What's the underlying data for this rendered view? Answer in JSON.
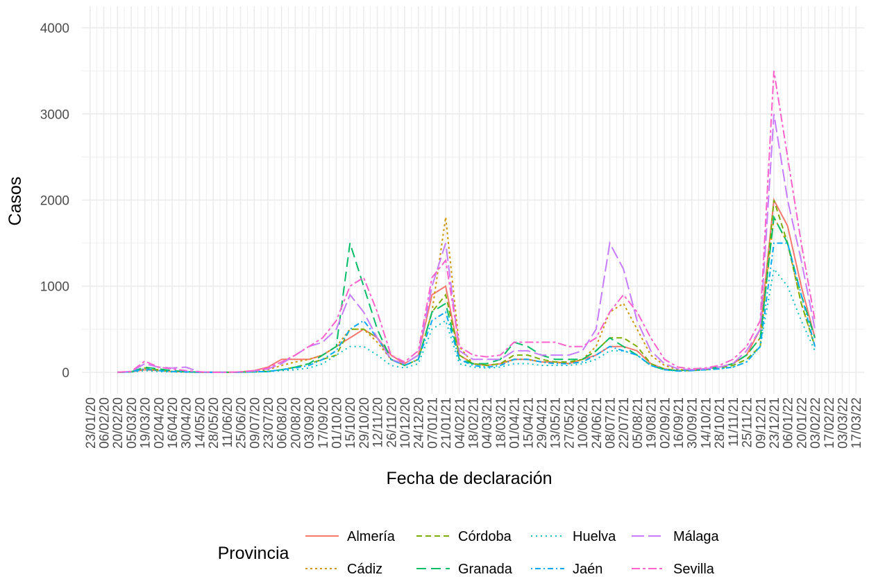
{
  "chart_data": {
    "type": "line",
    "x_label": "Fecha de declaración",
    "y_label": "Casos",
    "legend_title": "Provincia",
    "legend_position": "bottom",
    "grid": true,
    "categories": [
      "23/01/20",
      "06/02/20",
      "20/02/20",
      "05/03/20",
      "19/03/20",
      "02/04/20",
      "16/04/20",
      "30/04/20",
      "14/05/20",
      "28/05/20",
      "11/06/20",
      "25/06/20",
      "09/07/20",
      "23/07/20",
      "06/08/20",
      "20/08/20",
      "03/09/20",
      "17/09/20",
      "01/10/20",
      "15/10/20",
      "29/10/20",
      "12/11/20",
      "26/11/20",
      "10/12/20",
      "24/12/20",
      "07/01/21",
      "21/01/21",
      "04/02/21",
      "18/02/21",
      "04/03/21",
      "18/03/21",
      "01/04/21",
      "15/04/21",
      "29/04/21",
      "13/05/21",
      "27/05/21",
      "10/06/21",
      "24/06/21",
      "08/07/21",
      "22/07/21",
      "05/08/21",
      "19/08/21",
      "02/09/21",
      "16/09/21",
      "30/09/21",
      "14/10/21",
      "28/10/21",
      "11/11/21",
      "25/11/21",
      "09/12/21",
      "23/12/21",
      "06/01/22",
      "20/01/22",
      "03/02/22",
      "17/02/22",
      "03/03/22",
      "17/03/22"
    ],
    "ylim": [
      -250,
      4250
    ],
    "yticks": [
      0,
      1000,
      2000,
      3000,
      4000
    ],
    "series": [
      {
        "name": "Almería",
        "color": "#F8766D",
        "linetype": "solid",
        "values": [
          null,
          null,
          0,
          5,
          30,
          20,
          10,
          5,
          0,
          0,
          0,
          5,
          20,
          60,
          150,
          150,
          150,
          200,
          300,
          400,
          500,
          400,
          200,
          100,
          200,
          900,
          1000,
          200,
          100,
          80,
          100,
          150,
          150,
          120,
          120,
          100,
          150,
          200,
          300,
          300,
          250,
          100,
          40,
          20,
          30,
          40,
          60,
          100,
          200,
          500,
          2000,
          1700,
          1000,
          400,
          null,
          null,
          null
        ]
      },
      {
        "name": "Cádiz",
        "color": "#CD9600",
        "linetype": "dotted",
        "values": [
          null,
          null,
          0,
          5,
          40,
          20,
          10,
          5,
          0,
          0,
          0,
          5,
          10,
          30,
          80,
          120,
          150,
          200,
          300,
          500,
          500,
          350,
          150,
          80,
          150,
          700,
          1800,
          300,
          100,
          80,
          100,
          150,
          150,
          120,
          120,
          100,
          150,
          300,
          700,
          800,
          500,
          200,
          80,
          30,
          30,
          40,
          60,
          100,
          200,
          400,
          1800,
          1500,
          800,
          300,
          null,
          null,
          null
        ]
      },
      {
        "name": "Córdoba",
        "color": "#7CAE00",
        "linetype": "dashed",
        "values": [
          null,
          null,
          0,
          5,
          50,
          30,
          10,
          5,
          0,
          0,
          0,
          0,
          5,
          10,
          30,
          60,
          100,
          150,
          200,
          500,
          500,
          400,
          150,
          80,
          150,
          700,
          900,
          200,
          100,
          80,
          100,
          200,
          200,
          150,
          120,
          120,
          150,
          250,
          400,
          400,
          300,
          100,
          40,
          20,
          20,
          30,
          50,
          80,
          150,
          300,
          2000,
          1500,
          800,
          300,
          null,
          null,
          null
        ]
      },
      {
        "name": "Granada",
        "color": "#00BE67",
        "linetype": "longdash",
        "values": [
          null,
          null,
          0,
          5,
          60,
          40,
          20,
          10,
          0,
          0,
          0,
          0,
          5,
          10,
          30,
          60,
          100,
          200,
          300,
          1500,
          1000,
          500,
          150,
          80,
          150,
          700,
          800,
          150,
          100,
          100,
          150,
          350,
          300,
          200,
          150,
          150,
          150,
          250,
          400,
          300,
          200,
          80,
          30,
          20,
          30,
          40,
          60,
          100,
          200,
          400,
          1800,
          1500,
          900,
          400,
          null,
          null,
          null
        ]
      },
      {
        "name": "Huelva",
        "color": "#00BFC4",
        "linetype": "dotted2",
        "values": [
          null,
          null,
          0,
          3,
          20,
          10,
          5,
          2,
          0,
          0,
          0,
          2,
          5,
          10,
          20,
          30,
          50,
          100,
          200,
          300,
          300,
          200,
          80,
          50,
          100,
          500,
          600,
          100,
          60,
          50,
          60,
          100,
          100,
          80,
          80,
          80,
          100,
          150,
          250,
          250,
          200,
          80,
          30,
          15,
          20,
          30,
          40,
          60,
          120,
          300,
          1200,
          1000,
          600,
          250,
          null,
          null,
          null
        ]
      },
      {
        "name": "Jaén",
        "color": "#00A9FF",
        "linetype": "dotdash",
        "values": [
          null,
          null,
          0,
          5,
          40,
          20,
          10,
          5,
          0,
          0,
          0,
          2,
          5,
          10,
          30,
          50,
          80,
          150,
          250,
          500,
          600,
          400,
          150,
          80,
          150,
          600,
          700,
          150,
          80,
          60,
          80,
          150,
          150,
          120,
          100,
          100,
          120,
          200,
          300,
          250,
          200,
          80,
          30,
          15,
          20,
          30,
          40,
          60,
          120,
          300,
          1500,
          1500,
          900,
          300,
          null,
          null,
          null
        ]
      },
      {
        "name": "Málaga",
        "color": "#C77CFF",
        "linetype": "longdash2",
        "values": [
          null,
          null,
          0,
          10,
          100,
          60,
          50,
          60,
          5,
          0,
          0,
          5,
          15,
          40,
          100,
          200,
          300,
          350,
          500,
          900,
          700,
          400,
          150,
          100,
          200,
          1000,
          1500,
          250,
          150,
          150,
          150,
          250,
          250,
          200,
          200,
          200,
          250,
          500,
          1500,
          1200,
          600,
          250,
          100,
          40,
          30,
          40,
          60,
          100,
          250,
          500,
          3000,
          2000,
          1300,
          500,
          null,
          null,
          null
        ]
      },
      {
        "name": "Sevilla",
        "color": "#FF61CC",
        "linetype": "twodash",
        "values": [
          null,
          null,
          0,
          10,
          130,
          60,
          40,
          20,
          5,
          0,
          0,
          5,
          20,
          50,
          120,
          200,
          300,
          400,
          600,
          1000,
          1100,
          700,
          200,
          120,
          250,
          1100,
          1300,
          300,
          200,
          180,
          200,
          350,
          350,
          350,
          350,
          300,
          300,
          400,
          700,
          900,
          700,
          400,
          150,
          60,
          40,
          50,
          80,
          150,
          300,
          600,
          3500,
          2500,
          1500,
          600,
          null,
          null,
          null
        ]
      }
    ]
  }
}
